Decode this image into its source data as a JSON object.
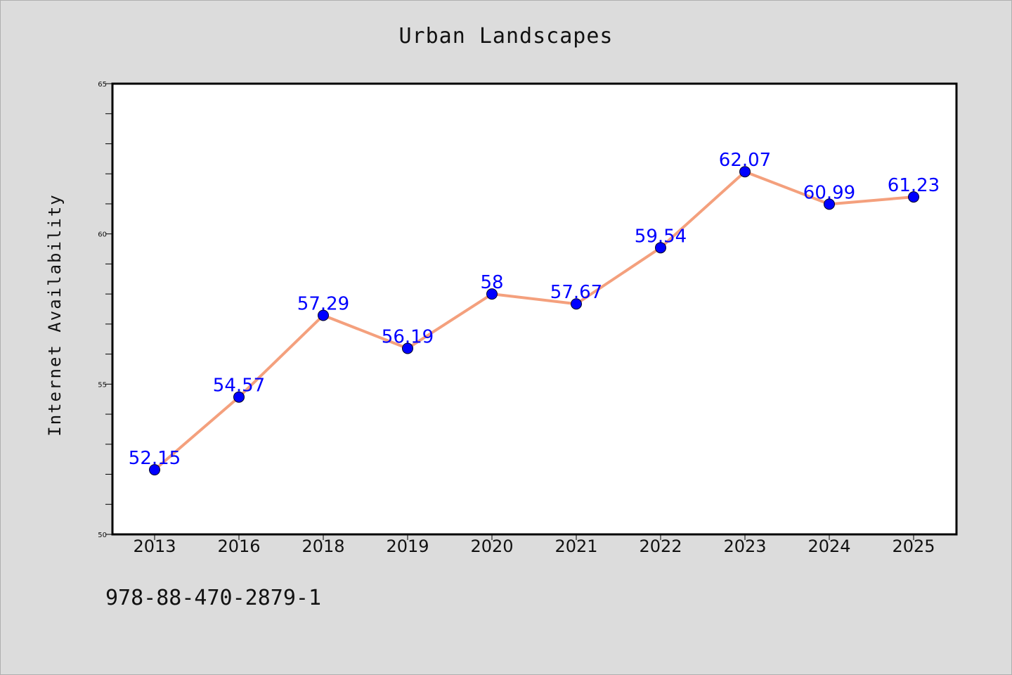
{
  "title": "Urban Landscapes",
  "footer_code": "978-88-470-2879-1",
  "colors": {
    "background": "#dcdcdc",
    "plot_background": "#ffffff",
    "line": "#f4a07d",
    "marker": "#0000ff",
    "data_label": "#0000ff"
  },
  "chart_data": {
    "type": "line",
    "title": "Urban Landscapes",
    "xlabel": "",
    "ylabel": "Internet Availability",
    "categories": [
      "2013",
      "2016",
      "2018",
      "2019",
      "2020",
      "2021",
      "2022",
      "2023",
      "2024",
      "2025"
    ],
    "series": [
      {
        "values": [
          52.15,
          54.57,
          57.29,
          56.19,
          58,
          57.67,
          59.54,
          62.07,
          60.99,
          61.23
        ],
        "labels": [
          "52.15",
          "54.57",
          "57.29",
          "56.19",
          "58",
          "57.67",
          "59.54",
          "62.07",
          "60.99",
          "61.23"
        ]
      }
    ],
    "ylim": [
      50,
      65
    ],
    "yticks": [
      50,
      55,
      60,
      65
    ],
    "grid": false,
    "legend": "none"
  }
}
